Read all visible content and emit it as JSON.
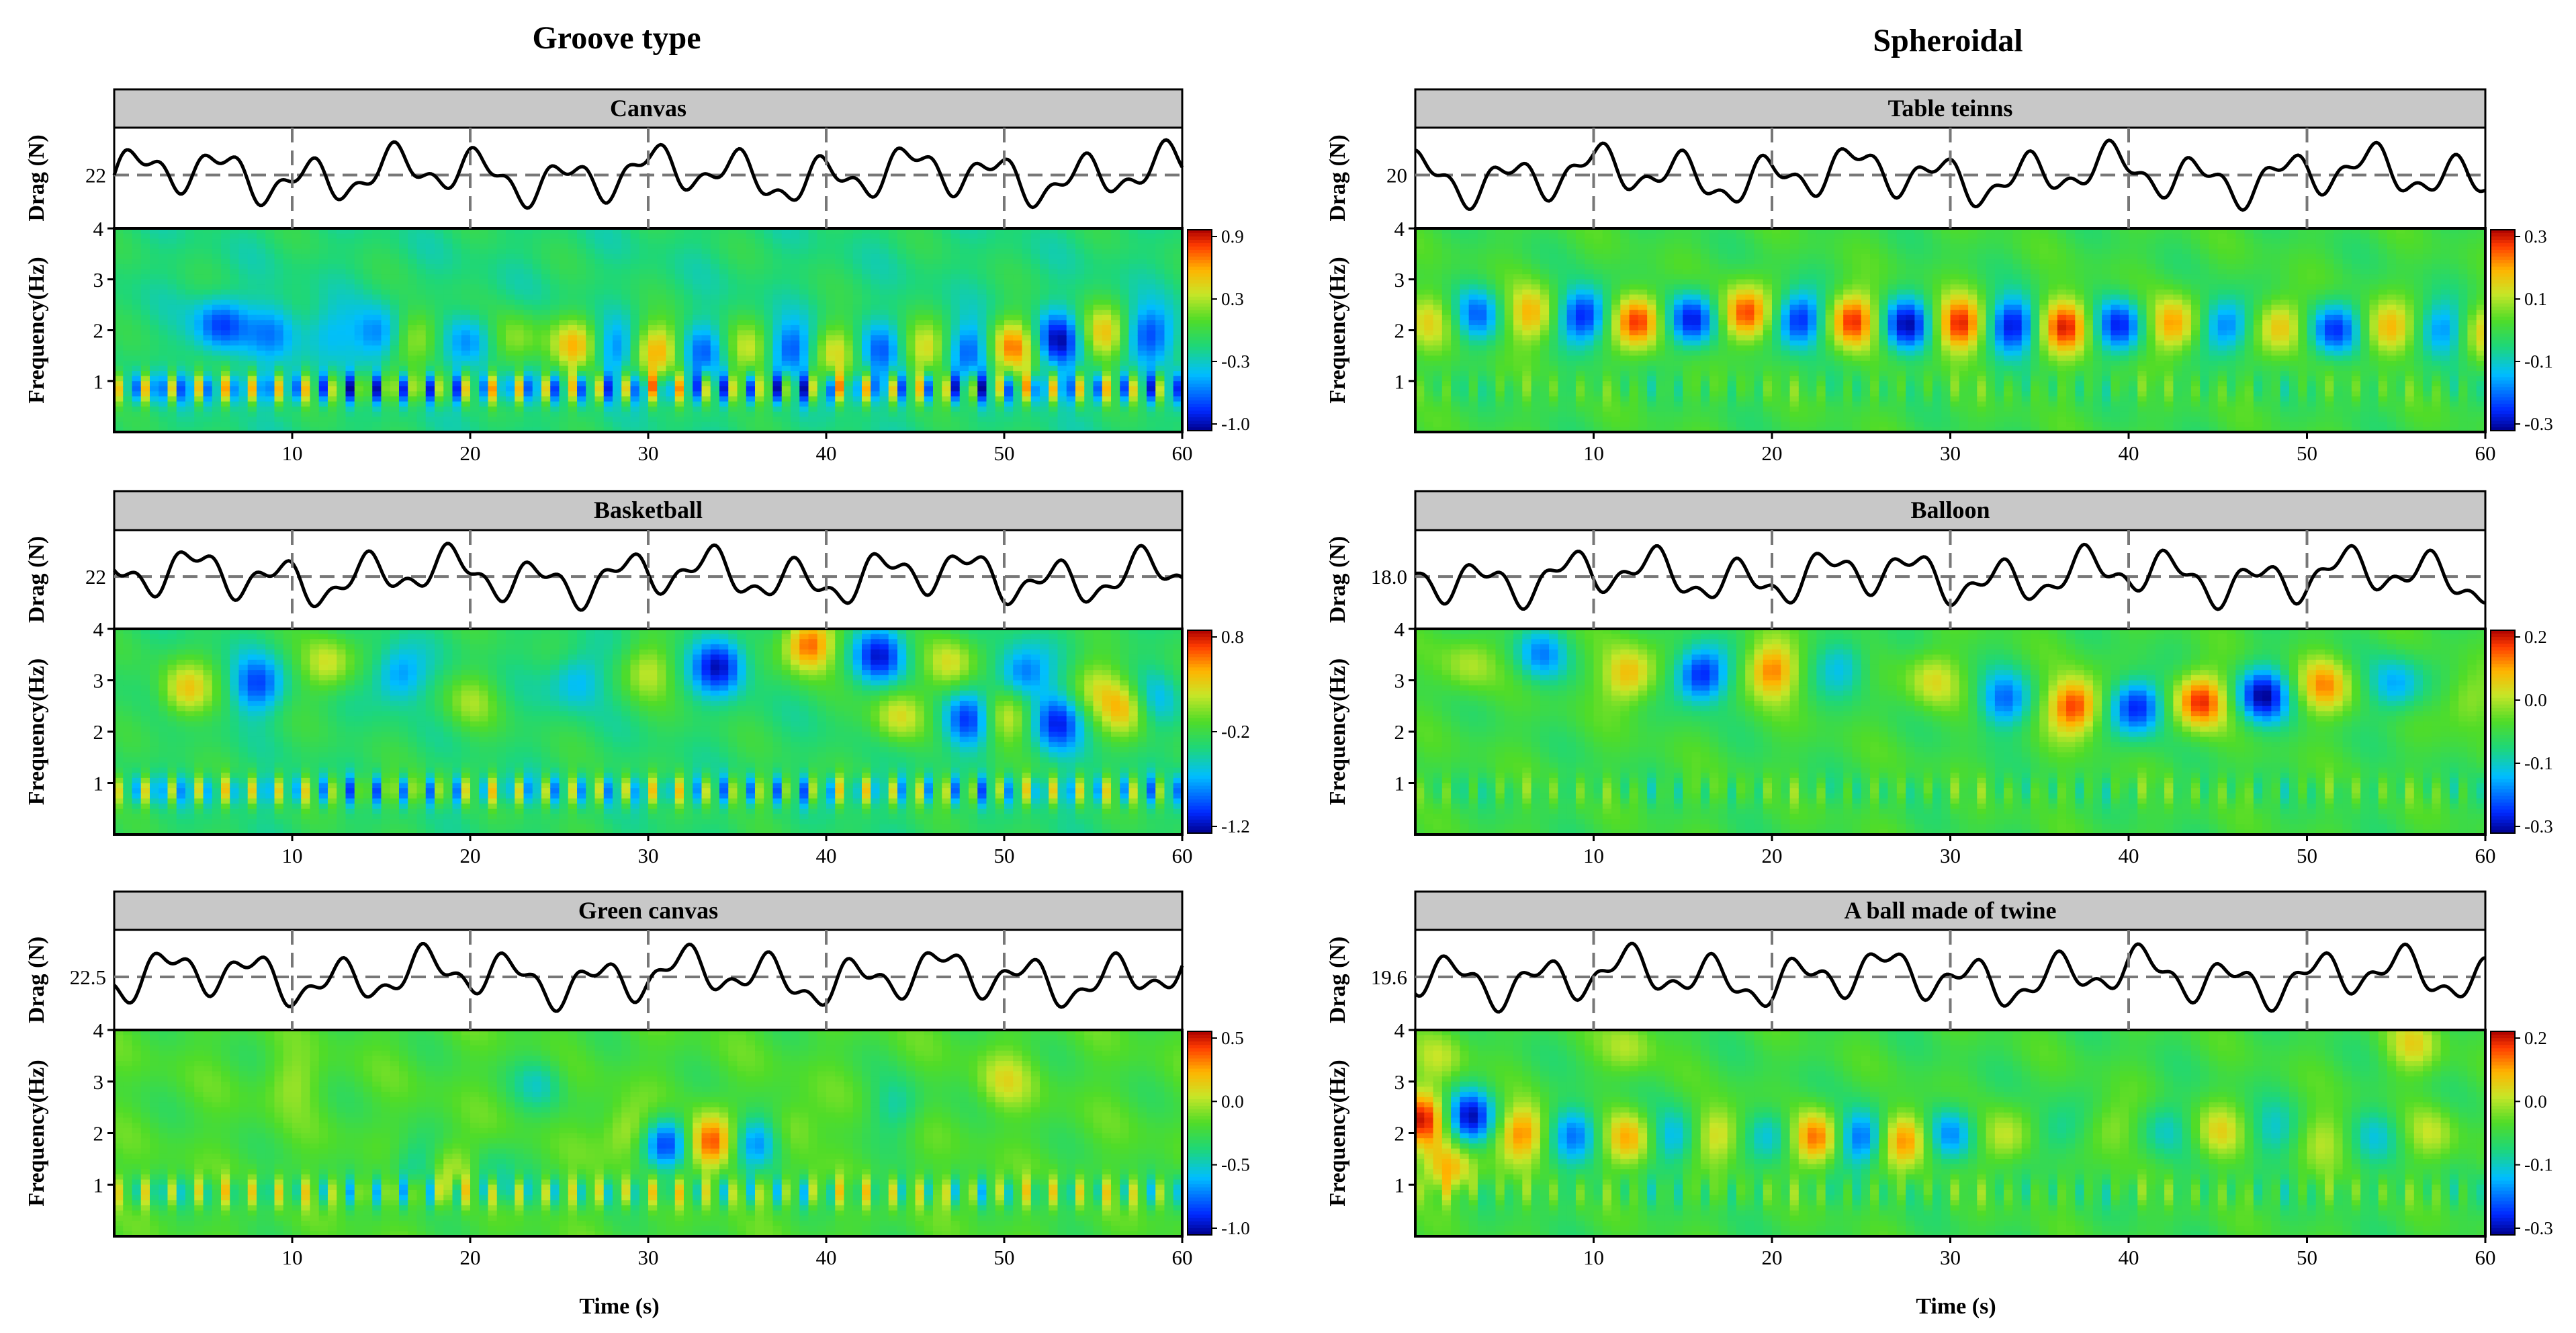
{
  "chart_data": {
    "type": "heatmap",
    "columns": [
      "Groove type",
      "Spheroidal"
    ],
    "xlabel": "Time (s)",
    "drag_ylabel": "Drag (N)",
    "freq_ylabel": "Frequency(Hz)",
    "x_ticks": [
      "10",
      "20",
      "30",
      "40",
      "50",
      "60"
    ],
    "xlim": [
      0,
      60
    ],
    "freq_ylim": [
      0,
      4
    ],
    "freq_ticks": [
      "1",
      "2",
      "3",
      "4"
    ],
    "colors": {
      "title_bar": "#c8c8c8",
      "trace": "#000000",
      "mean_line": "#777777",
      "gridline": "#777777"
    },
    "panels": [
      {
        "title": "Canvas",
        "column": 0,
        "row": 0,
        "drag_mean_label": "22",
        "drag_mean": 22,
        "colorbar_ticks": [
          "0.9",
          "0.3",
          "-0.3",
          "-1.0"
        ],
        "blobs": [
          [
            12,
            1.9,
            -0.3
          ],
          [
            6,
            2.1,
            -0.6
          ],
          [
            9,
            2.0,
            -0.4
          ],
          [
            15,
            1.9,
            -0.5
          ],
          [
            17,
            1.9,
            0.5
          ],
          [
            20,
            1.8,
            -0.4
          ],
          [
            22.5,
            1.8,
            0.4
          ],
          [
            26,
            1.7,
            0.7
          ],
          [
            28,
            1.6,
            -0.5
          ],
          [
            30.5,
            1.6,
            0.8
          ],
          [
            33,
            1.6,
            -0.5
          ],
          [
            35.5,
            1.6,
            0.5
          ],
          [
            38,
            1.6,
            -0.6
          ],
          [
            40.5,
            1.6,
            0.6
          ],
          [
            43,
            1.6,
            -0.5
          ],
          [
            45.5,
            1.6,
            0.6
          ],
          [
            48,
            1.6,
            -0.6
          ],
          [
            50.5,
            1.7,
            0.9
          ],
          [
            53,
            1.8,
            -0.8
          ],
          [
            55.5,
            1.9,
            0.7
          ],
          [
            58,
            1.9,
            -0.6
          ]
        ],
        "band_amp": 0.9,
        "base_level": -0.15
      },
      {
        "title": "Table teinns",
        "column": 1,
        "row": 0,
        "drag_mean_label": "20",
        "drag_mean": 20,
        "colorbar_ticks": [
          "0.3",
          "0.1",
          "-0.1",
          "-0.3"
        ],
        "blobs": [
          [
            1,
            2.2,
            0.4
          ],
          [
            3.5,
            2.3,
            -0.6
          ],
          [
            6.5,
            2.3,
            0.6
          ],
          [
            9.5,
            2.3,
            -0.9
          ],
          [
            12.5,
            2.2,
            0.9
          ],
          [
            15.5,
            2.2,
            -0.9
          ],
          [
            18.5,
            2.3,
            0.9
          ],
          [
            21.5,
            2.2,
            -0.9
          ],
          [
            24.5,
            2.2,
            0.9
          ],
          [
            27.5,
            2.1,
            -0.9
          ],
          [
            30.5,
            2.1,
            0.9
          ],
          [
            33.5,
            2.1,
            -0.9
          ],
          [
            36.5,
            2.1,
            0.9
          ],
          [
            39.5,
            2.1,
            -0.8
          ],
          [
            42.5,
            2.1,
            0.7
          ],
          [
            45.5,
            2.1,
            -0.7
          ],
          [
            48.5,
            2.1,
            0.6
          ],
          [
            51.5,
            2.0,
            -0.8
          ],
          [
            54.5,
            2.0,
            0.6
          ],
          [
            57.5,
            2.0,
            -0.6
          ],
          [
            60,
            2.0,
            0.5
          ]
        ],
        "band_amp": 0.2,
        "base_level": 0.0
      },
      {
        "title": "Basketball",
        "column": 0,
        "row": 1,
        "drag_mean_label": "22",
        "drag_mean": 22,
        "colorbar_ticks": [
          "0.8",
          "-0.2",
          "-1.2"
        ],
        "blobs": [
          [
            4,
            2.8,
            0.6
          ],
          [
            8,
            2.9,
            -0.6
          ],
          [
            12,
            3.3,
            0.5
          ],
          [
            16,
            3.1,
            -0.5
          ],
          [
            20,
            2.6,
            0.3
          ],
          [
            26,
            3.0,
            -0.4
          ],
          [
            30,
            3.2,
            0.4
          ],
          [
            34,
            3.3,
            -0.8
          ],
          [
            39,
            3.7,
            0.9
          ],
          [
            43,
            3.5,
            -0.7
          ],
          [
            47,
            3.3,
            0.5
          ],
          [
            51,
            3.1,
            -0.6
          ],
          [
            55,
            2.9,
            0.4
          ],
          [
            58,
            2.6,
            -0.5
          ],
          [
            44,
            2.3,
            0.5
          ],
          [
            48,
            2.2,
            -0.7
          ],
          [
            50,
            2.3,
            0.6
          ],
          [
            53,
            2.2,
            -0.7
          ],
          [
            57,
            2.5,
            0.8
          ]
        ],
        "band_amp": 0.7,
        "base_level": -0.1
      },
      {
        "title": "Balloon",
        "column": 1,
        "row": 1,
        "drag_mean_label": "18.0",
        "drag_mean": 18,
        "colorbar_ticks": [
          "0.2",
          "0.0",
          "-0.1",
          "-0.3"
        ],
        "blobs": [
          [
            3,
            3.3,
            0.3
          ],
          [
            7,
            3.5,
            -0.5
          ],
          [
            12,
            3.1,
            0.6
          ],
          [
            16,
            3.1,
            -0.9
          ],
          [
            20,
            3.2,
            0.7
          ],
          [
            24,
            3.3,
            -0.4
          ],
          [
            29,
            3.0,
            0.4
          ],
          [
            33,
            2.6,
            -0.6
          ],
          [
            37,
            2.5,
            0.9
          ],
          [
            40.5,
            2.5,
            -0.9
          ],
          [
            44,
            2.6,
            0.9
          ],
          [
            47.5,
            2.7,
            -0.9
          ],
          [
            51,
            2.9,
            0.6
          ],
          [
            55,
            2.9,
            -0.5
          ],
          [
            59,
            2.6,
            0.3
          ]
        ],
        "band_amp": 0.25,
        "base_level": 0.0
      },
      {
        "title": "Green canvas",
        "column": 0,
        "row": 2,
        "drag_mean_label": "22.5",
        "drag_mean": 22.5,
        "colorbar_ticks": [
          "0.5",
          "0.0",
          "-0.5",
          "-1.0"
        ],
        "blobs": [
          [
            29,
            2.0,
            0.4
          ],
          [
            31,
            1.8,
            -0.9
          ],
          [
            33.5,
            1.8,
            0.9
          ],
          [
            36,
            1.8,
            -0.8
          ],
          [
            38,
            2.1,
            0.3
          ],
          [
            24,
            3.0,
            -0.3
          ],
          [
            44,
            2.5,
            -0.3
          ],
          [
            10,
            3.0,
            0.2
          ],
          [
            50,
            3.0,
            0.3
          ],
          [
            17,
            1.3,
            -0.4
          ],
          [
            19,
            1.3,
            0.4
          ],
          [
            21,
            1.2,
            -0.3
          ]
        ],
        "band_amp": 0.55,
        "base_level": 0.05
      },
      {
        "title": "A ball made of twine",
        "column": 1,
        "row": 2,
        "drag_mean_label": "19.6",
        "drag_mean": 19.6,
        "colorbar_ticks": [
          "0.2",
          "0.0",
          "-0.1",
          "-0.3"
        ],
        "blobs": [
          [
            0.5,
            2.3,
            0.9
          ],
          [
            3,
            2.3,
            -0.9
          ],
          [
            6,
            2.0,
            0.7
          ],
          [
            9,
            2.0,
            -0.6
          ],
          [
            12,
            1.9,
            0.6
          ],
          [
            14.5,
            1.9,
            -0.5
          ],
          [
            17,
            2.0,
            0.5
          ],
          [
            20,
            2.0,
            -0.4
          ],
          [
            22.5,
            1.9,
            0.8
          ],
          [
            25,
            1.9,
            -0.8
          ],
          [
            27.5,
            1.9,
            0.8
          ],
          [
            30,
            2.0,
            -0.6
          ],
          [
            33,
            1.9,
            0.4
          ],
          [
            36,
            2.0,
            -0.3
          ],
          [
            39,
            2.1,
            0.3
          ],
          [
            42,
            2.1,
            -0.3
          ],
          [
            45,
            2.0,
            0.4
          ],
          [
            48,
            2.0,
            -0.3
          ],
          [
            51,
            1.9,
            0.3
          ],
          [
            54,
            2.0,
            -0.3
          ],
          [
            57,
            2.0,
            0.3
          ],
          [
            2,
            1.3,
            0.6
          ],
          [
            1.5,
            3.5,
            0.3
          ],
          [
            12,
            3.7,
            0.3
          ],
          [
            56,
            3.7,
            0.4
          ]
        ],
        "band_amp": 0.25,
        "base_level": 0.0
      }
    ]
  }
}
